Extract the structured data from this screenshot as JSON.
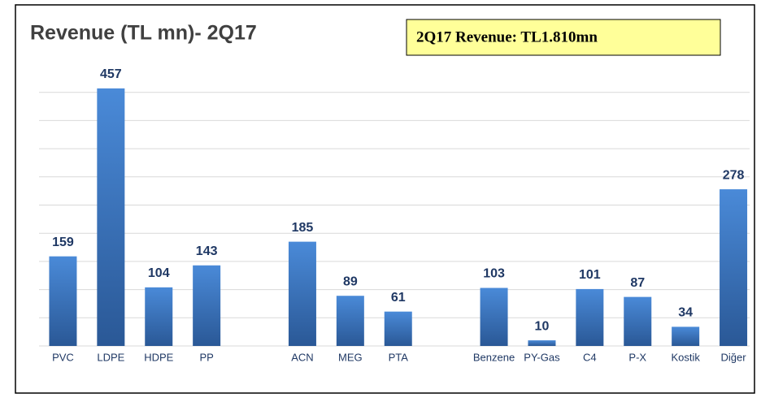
{
  "chart_data": {
    "type": "bar",
    "title": "Revenue (TL mn)- 2Q17",
    "annotation": "2Q17 Revenue: TL1.810mn",
    "categories": [
      "PVC",
      "LDPE",
      "HDPE",
      "PP",
      null,
      "ACN",
      "MEG",
      "PTA",
      null,
      "Benzene",
      "PY-Gas",
      "C4",
      "P-X",
      "Kostik",
      "Diğer"
    ],
    "values": [
      159,
      457,
      104,
      143,
      null,
      185,
      89,
      61,
      null,
      103,
      10,
      101,
      87,
      34,
      278
    ],
    "color": "#3c78c8",
    "ylim": [
      0,
      500
    ],
    "yticks": [
      0,
      50,
      100,
      150,
      200,
      250,
      300,
      350,
      400,
      450
    ],
    "grid": true
  }
}
